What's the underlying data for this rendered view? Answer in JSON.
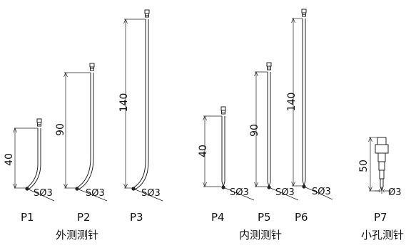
{
  "probes": [
    {
      "id": "p1",
      "label": "P1",
      "dimension": "40",
      "tip": "SØ3"
    },
    {
      "id": "p2",
      "label": "P2",
      "dimension": "90",
      "tip": "SØ3"
    },
    {
      "id": "p3",
      "label": "P3",
      "dimension": "140",
      "tip": "SØ3"
    },
    {
      "id": "p4",
      "label": "P4",
      "dimension": "40",
      "tip": "SØ3"
    },
    {
      "id": "p5",
      "label": "P5",
      "dimension": "90",
      "tip": "SØ3"
    },
    {
      "id": "p6",
      "label": "P6",
      "dimension": "140",
      "tip": "SØ3"
    },
    {
      "id": "p7",
      "label": "P7",
      "dimension": "50",
      "tip": "Ø3"
    }
  ],
  "groups": [
    {
      "id": "outer",
      "label": "外测测针"
    },
    {
      "id": "inner",
      "label": "内测测针"
    },
    {
      "id": "hole",
      "label": "小孔测针"
    }
  ]
}
